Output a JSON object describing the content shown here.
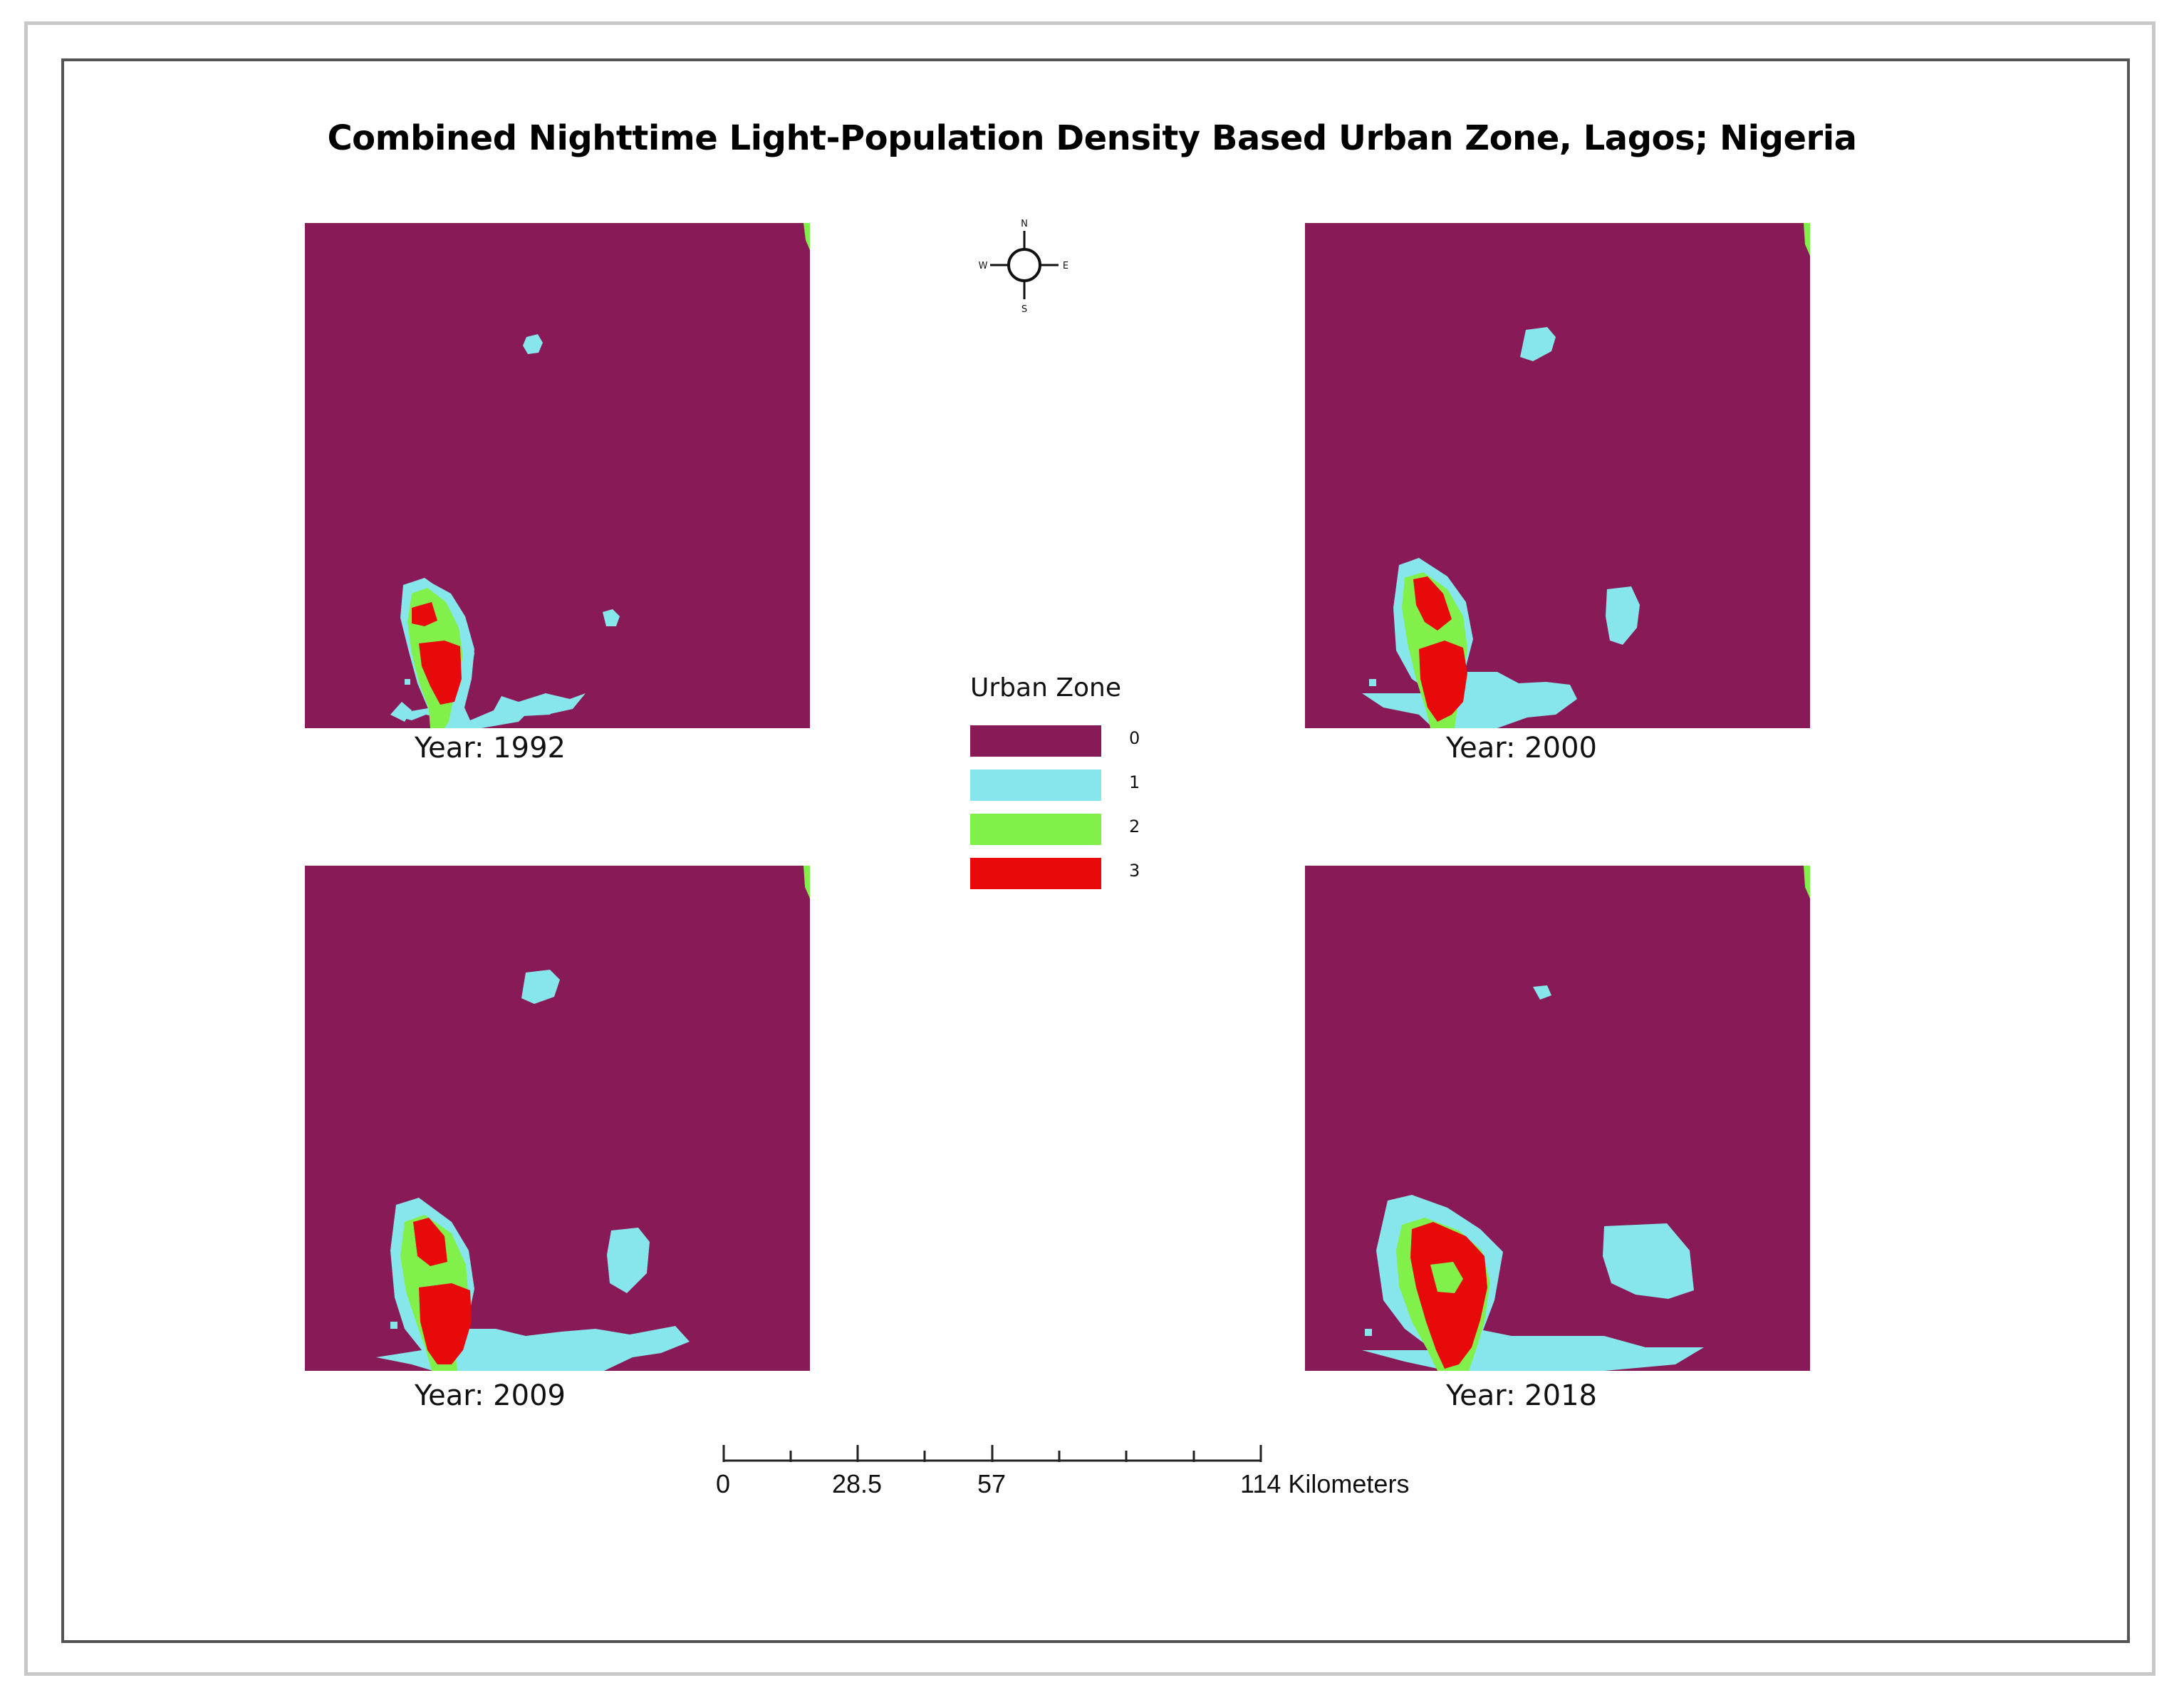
{
  "title": "Combined Nighttime Light-Population Density Based Urban Zone, Lagos; Nigeria",
  "colors": {
    "zone_0": "#891a58",
    "zone_1": "#86e6ec",
    "zone_2": "#82f04b",
    "zone_3": "#e8090b"
  },
  "panels": [
    {
      "id": "1992",
      "label": "Year: 1992"
    },
    {
      "id": "2000",
      "label": "Year: 2000"
    },
    {
      "id": "2009",
      "label": "Year: 2009"
    },
    {
      "id": "2018",
      "label": "Year: 2018"
    }
  ],
  "legend": {
    "title": "Urban Zone",
    "items": [
      {
        "value": "0",
        "color": "#891a58"
      },
      {
        "value": "1",
        "color": "#86e6ec"
      },
      {
        "value": "2",
        "color": "#82f04b"
      },
      {
        "value": "3",
        "color": "#e8090b"
      }
    ]
  },
  "north_arrow": {
    "n": "N",
    "s": "S",
    "e": "E",
    "w": "W",
    "icon": "compass-rose-icon"
  },
  "scale_bar": {
    "ticks": [
      "0",
      "28.5",
      "57",
      "114 Kilometers"
    ],
    "unit": "Kilometers"
  }
}
